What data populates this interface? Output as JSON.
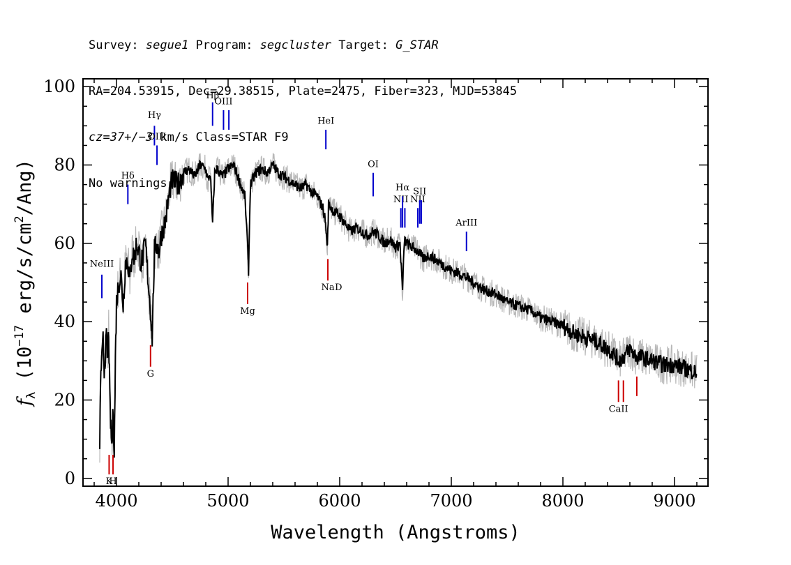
{
  "header": {
    "line1": {
      "survey_label": "Survey: ",
      "survey": "segue1",
      "program_label": " Program: ",
      "program": "segcluster",
      "target_label": " Target: ",
      "target": "G_STAR"
    },
    "line2": "RA=204.53915, Dec=29.38515, Plate=2475, Fiber=323, MJD=53845",
    "line3": {
      "cz": "cz=37+/−3",
      "rest": " km/s Class=STAR F9"
    },
    "line4": "No warnings."
  },
  "chart_data": {
    "type": "line",
    "xlabel": "Wavelength (Angstroms)",
    "ylabel_parts": [
      "f",
      "λ",
      " (10",
      "−17",
      " erg/s/cm",
      "2",
      "/Ang)"
    ],
    "xlim": [
      3700,
      9300
    ],
    "ylim": [
      -2,
      102
    ],
    "x_ticks": [
      4000,
      5000,
      6000,
      7000,
      8000,
      9000
    ],
    "y_ticks": [
      0,
      20,
      40,
      60,
      80,
      100
    ],
    "x_minor_step": 200,
    "y_minor_step": 5,
    "colors": {
      "flux": "#000000",
      "error_band": "#b8b8b8",
      "emission": "#0000cc",
      "absorption": "#cc0000"
    },
    "series": [
      {
        "type": "flux",
        "x": [
          3850,
          3860,
          3870,
          3880,
          3890,
          3900,
          3910,
          3920,
          3930,
          3940,
          3950,
          3960,
          3970,
          3980,
          3990,
          4000,
          4020,
          4040,
          4060,
          4080,
          4100,
          4120,
          4140,
          4160,
          4180,
          4200,
          4220,
          4240,
          4260,
          4280,
          4300,
          4320,
          4340,
          4360,
          4380,
          4400,
          4420,
          4440,
          4460,
          4480,
          4500,
          4550,
          4600,
          4650,
          4700,
          4750,
          4800,
          4820,
          4840,
          4861,
          4880,
          4900,
          4950,
          5000,
          5050,
          5100,
          5150,
          5170,
          5183,
          5200,
          5250,
          5300,
          5350,
          5400,
          5450,
          5500,
          5550,
          5600,
          5650,
          5700,
          5750,
          5800,
          5850,
          5870,
          5890,
          5900,
          5950,
          6000,
          6050,
          6100,
          6150,
          6200,
          6250,
          6300,
          6350,
          6400,
          6450,
          6500,
          6540,
          6563,
          6580,
          6600,
          6650,
          6700,
          6750,
          6800,
          6900,
          7000,
          7100,
          7200,
          7300,
          7400,
          7500,
          7600,
          7700,
          7800,
          7900,
          8000,
          8100,
          8200,
          8300,
          8400,
          8450,
          8498,
          8542,
          8600,
          8662,
          8700,
          8800,
          8900,
          9000,
          9100,
          9200
        ],
        "y": [
          10,
          28,
          30,
          35,
          28,
          32,
          36,
          30,
          38,
          20,
          12,
          8,
          18,
          6,
          30,
          45,
          50,
          52,
          44,
          55,
          56,
          50,
          58,
          56,
          60,
          58,
          55,
          57,
          60,
          52,
          45,
          36,
          58,
          60,
          58,
          62,
          64,
          66,
          70,
          74,
          76,
          75,
          78,
          79,
          77,
          80,
          79,
          76,
          78,
          65,
          78,
          79,
          77,
          79,
          80,
          76,
          72,
          62,
          53,
          75,
          78,
          79,
          78,
          80,
          78,
          77,
          76,
          75,
          74,
          75,
          73,
          72,
          69,
          66,
          59,
          70,
          68,
          67,
          65,
          63,
          64,
          63,
          62,
          63,
          62,
          60,
          61,
          59,
          60,
          48,
          61,
          60,
          59,
          58,
          56,
          57,
          55,
          53,
          52,
          50,
          48,
          47,
          45,
          44,
          43,
          41,
          40,
          39,
          37,
          36,
          35,
          33,
          32,
          30,
          31,
          33,
          31,
          31,
          30,
          29,
          29,
          28,
          27
        ]
      }
    ],
    "line_markers": [
      {
        "label": "NeIII",
        "x": 3869,
        "kind": "emission",
        "y_top": 52,
        "y_bottom": 46,
        "label_y": 54
      },
      {
        "label": "Hδ",
        "x": 4102,
        "kind": "emission",
        "y_top": 75,
        "y_bottom": 70,
        "label_y": 76.5
      },
      {
        "label": "Hγ",
        "x": 4340,
        "kind": "emission",
        "y_top": 90,
        "y_bottom": 85,
        "label_y": 92
      },
      {
        "label": "OIII",
        "x": 4363,
        "kind": "emission",
        "y_top": 85,
        "y_bottom": 80,
        "label_y": 86.5
      },
      {
        "label": "Hβ",
        "x": 4861,
        "kind": "emission",
        "y_top": 96,
        "y_bottom": 90,
        "label_y": 97
      },
      {
        "label": "OIII",
        "x": 4959,
        "kind": "emission",
        "y_top": 94,
        "y_bottom": 89,
        "label_y": 95.5
      },
      {
        "label": "",
        "x": 5007,
        "kind": "emission",
        "y_top": 94,
        "y_bottom": 89,
        "label_y": 95.5
      },
      {
        "label": "HeI",
        "x": 5876,
        "kind": "emission",
        "y_top": 89,
        "y_bottom": 84,
        "label_y": 90.5
      },
      {
        "label": "OI",
        "x": 6300,
        "kind": "emission",
        "y_top": 78,
        "y_bottom": 72,
        "label_y": 79.5
      },
      {
        "label": "NII",
        "x": 6548,
        "kind": "emission",
        "y_top": 69,
        "y_bottom": 64,
        "label_y": 70.5
      },
      {
        "label": "Hα",
        "x": 6563,
        "kind": "emission",
        "y_top": 72,
        "y_bottom": 64,
        "label_y": 73.5
      },
      {
        "label": "",
        "x": 6584,
        "kind": "emission",
        "y_top": 69,
        "y_bottom": 64,
        "label_y": 70.5
      },
      {
        "label": "NII",
        "x": 6700,
        "kind": "emission",
        "y_top": 69,
        "y_bottom": 64,
        "label_y": 70.5
      },
      {
        "label": "SII",
        "x": 6717,
        "kind": "emission",
        "y_top": 71,
        "y_bottom": 65,
        "label_y": 72.5
      },
      {
        "label": "",
        "x": 6731,
        "kind": "emission",
        "y_top": 71,
        "y_bottom": 65,
        "label_y": 72.5
      },
      {
        "label": "ArIII",
        "x": 7136,
        "kind": "emission",
        "y_top": 63,
        "y_bottom": 58,
        "label_y": 64.5
      },
      {
        "label": "K",
        "x": 3934,
        "kind": "absorption",
        "y_top": 6,
        "y_bottom": 1,
        "label_y": -1.5
      },
      {
        "label": "H",
        "x": 3969,
        "kind": "absorption",
        "y_top": 6,
        "y_bottom": 1,
        "label_y": -1.5
      },
      {
        "label": "G",
        "x": 4305,
        "kind": "absorption",
        "y_top": 34,
        "y_bottom": 28.5,
        "label_y": 26
      },
      {
        "label": "Mg",
        "x": 5175,
        "kind": "absorption",
        "y_top": 50,
        "y_bottom": 44.5,
        "label_y": 42
      },
      {
        "label": "Na",
        "x": 5894,
        "kind": "absorption",
        "y_top": 56,
        "y_bottom": 50.5,
        "label_y": 48
      },
      {
        "label": "D",
        "x": 5990,
        "kind": "label_only",
        "y_top": 0,
        "y_bottom": 0,
        "label_y": 48
      },
      {
        "label": "CaII",
        "x": 8498,
        "kind": "absorption",
        "y_top": 25,
        "y_bottom": 19.5,
        "label_y": 17
      },
      {
        "label": "",
        "x": 8542,
        "kind": "absorption",
        "y_top": 25,
        "y_bottom": 19.5,
        "label_y": 17
      },
      {
        "label": "",
        "x": 8662,
        "kind": "absorption",
        "y_top": 26,
        "y_bottom": 21,
        "label_y": 17
      }
    ]
  }
}
